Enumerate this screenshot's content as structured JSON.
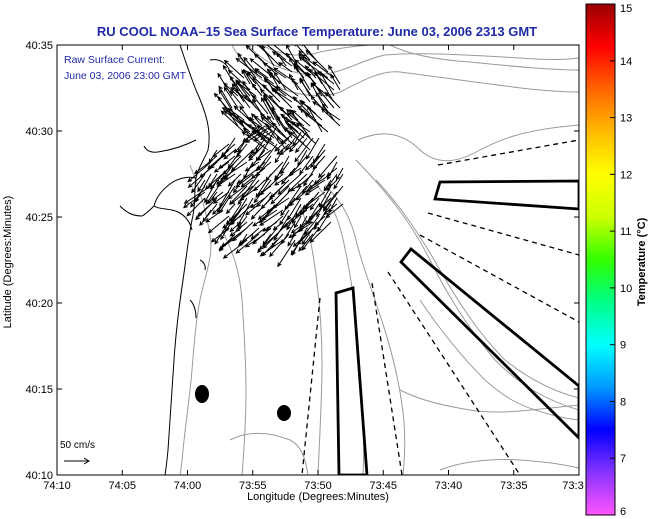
{
  "chart_data": {
    "type": "map",
    "title": "RU COOL  NOAA–15  Sea Surface Temperature:  June 03, 2006 2313 GMT",
    "annotation": {
      "line1": "Raw Surface Current:",
      "line2": "June 03, 2006 23:00 GMT"
    },
    "xlabel": "Longitude (Degrees:Minutes)",
    "ylabel": "Latitude (Degrees:Minutes)",
    "x_ticks": [
      "74:10",
      "74:05",
      "74:00",
      "73:55",
      "73:50",
      "73:45",
      "73:40",
      "73:35",
      "73:3"
    ],
    "y_ticks": [
      "40:10",
      "40:15",
      "40:20",
      "40:25",
      "40:30",
      "40:35"
    ],
    "xlim": [
      "74:10",
      "73:30"
    ],
    "ylim": [
      "40:10",
      "40:35"
    ],
    "scale_arrow_label": "50 cm/s",
    "colorbar": {
      "label": "Temperature (°C)",
      "min": 6,
      "max": 15,
      "ticks": [
        "15",
        "14",
        "13",
        "12",
        "11",
        "10",
        "9",
        "8",
        "7",
        "6"
      ],
      "colors": [
        "#ff55ff",
        "#8833ff",
        "#0000ff",
        "#0099ff",
        "#00ffff",
        "#00ff88",
        "#33ff00",
        "#ccff00",
        "#ffff00",
        "#ffbb00",
        "#ff6600",
        "#ff0000",
        "#990000"
      ]
    },
    "grid": false
  }
}
